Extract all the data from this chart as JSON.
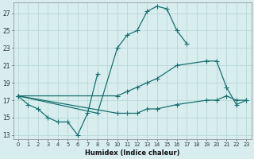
{
  "xlabel": "Humidex (Indice chaleur)",
  "bg_color": "#d7edee",
  "line_color": "#1a7070",
  "grid_color": "#b8d8d8",
  "xlim": [
    -0.5,
    23.5
  ],
  "ylim": [
    12.5,
    28.2
  ],
  "xticks": [
    0,
    1,
    2,
    3,
    4,
    5,
    6,
    7,
    8,
    9,
    10,
    11,
    12,
    13,
    14,
    15,
    16,
    17,
    18,
    19,
    20,
    21,
    22,
    23
  ],
  "yticks": [
    13,
    15,
    17,
    19,
    21,
    23,
    25,
    27
  ],
  "curve_zigzag": {
    "x": [
      0,
      1,
      2,
      3,
      4,
      5,
      6,
      7,
      8
    ],
    "y": [
      17.5,
      16.5,
      16.0,
      15.0,
      14.5,
      14.5,
      13.0,
      15.5,
      20.0
    ]
  },
  "curve_arch": {
    "x": [
      0,
      8,
      10,
      11,
      12,
      13,
      14,
      15,
      16,
      17
    ],
    "y": [
      17.5,
      15.5,
      23.0,
      24.5,
      25.0,
      27.2,
      27.8,
      27.5,
      25.0,
      23.5
    ]
  },
  "curve_upper": {
    "x": [
      0,
      10,
      11,
      12,
      13,
      14,
      16,
      19,
      20,
      21,
      22,
      23
    ],
    "y": [
      17.5,
      17.5,
      18.0,
      18.5,
      19.0,
      19.5,
      21.0,
      21.5,
      21.5,
      18.5,
      16.5,
      17.0
    ]
  },
  "curve_lower": {
    "x": [
      0,
      10,
      11,
      12,
      13,
      14,
      16,
      19,
      20,
      21,
      22,
      23
    ],
    "y": [
      17.5,
      15.5,
      15.5,
      15.5,
      16.0,
      16.0,
      16.5,
      17.0,
      17.0,
      17.5,
      17.0,
      17.0
    ]
  }
}
